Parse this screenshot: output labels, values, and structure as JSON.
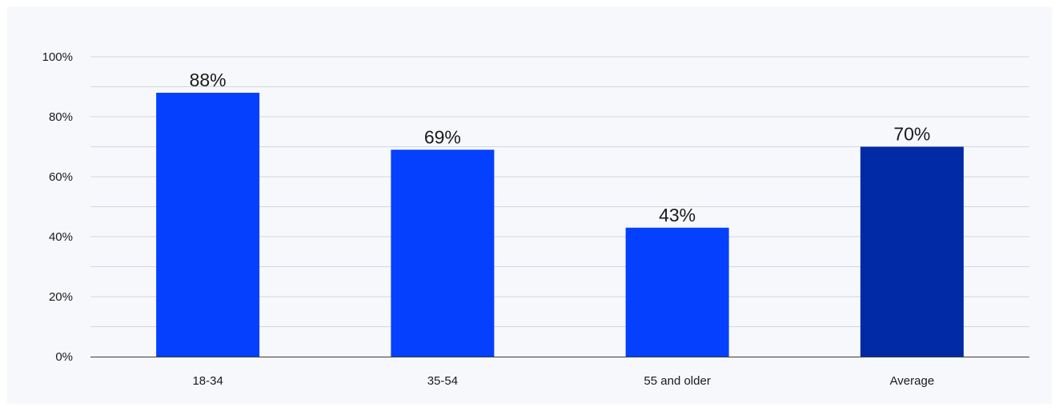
{
  "chart_data": {
    "type": "bar",
    "categories": [
      "18-34",
      "35-54",
      "55 and older",
      "Average"
    ],
    "values": [
      88,
      69,
      43,
      70
    ],
    "data_labels": [
      "88%",
      "69%",
      "43%",
      "70%"
    ],
    "ylim": [
      0,
      100
    ],
    "yticks": [
      0,
      20,
      40,
      60,
      80,
      100
    ],
    "ytick_labels": [
      "0%",
      "20%",
      "40%",
      "60%",
      "80%",
      "100%"
    ],
    "minor_grid": true,
    "grid": true,
    "legend": "none",
    "title": "",
    "xlabel": "",
    "ylabel": "",
    "colors": [
      "#0540ff",
      "#0540ff",
      "#0540ff",
      "#002aa6"
    ]
  }
}
